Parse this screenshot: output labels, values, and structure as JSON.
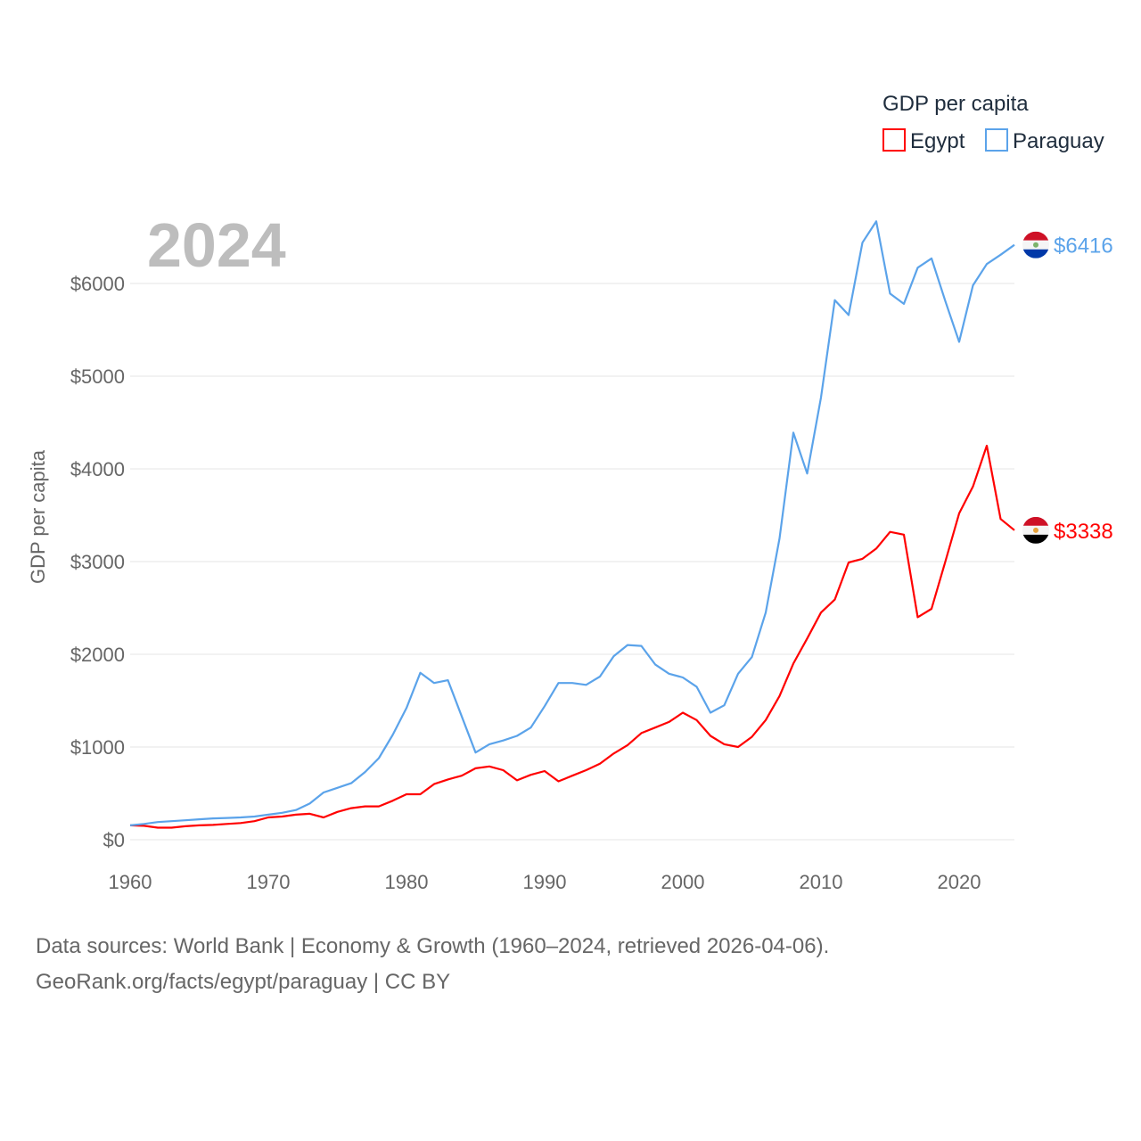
{
  "chart_data": {
    "type": "line",
    "title": "GDP per capita",
    "year_label": "2024",
    "ylabel": "GDP per capita",
    "xlabel": "",
    "xlim": [
      1960,
      2024
    ],
    "ylim": [
      0,
      6800
    ],
    "x_ticks": [
      1960,
      1970,
      1980,
      1990,
      2000,
      2010,
      2020
    ],
    "x_tick_labels": [
      "1960",
      "1970",
      "1980",
      "1990",
      "2000",
      "2010",
      "2020"
    ],
    "y_ticks": [
      0,
      1000,
      2000,
      3000,
      4000,
      5000,
      6000
    ],
    "y_tick_labels": [
      "$0",
      "$1000",
      "$2000",
      "$3000",
      "$4000",
      "$5000",
      "$6000"
    ],
    "grid": true,
    "legend_placement": "top-right",
    "x_start": 1960,
    "series": [
      {
        "name": "Egypt",
        "color": "#ff0000",
        "end_label": "$3338",
        "flag": "egypt-flag",
        "values": [
          155,
          150,
          130,
          130,
          145,
          155,
          160,
          170,
          180,
          200,
          240,
          250,
          270,
          280,
          240,
          300,
          340,
          360,
          360,
          420,
          490,
          490,
          600,
          650,
          690,
          770,
          790,
          750,
          640,
          700,
          740,
          630,
          690,
          750,
          820,
          930,
          1020,
          1150,
          1210,
          1270,
          1370,
          1290,
          1120,
          1030,
          1000,
          1110,
          1290,
          1550,
          1900,
          2170,
          2450,
          2590,
          2990,
          3030,
          3140,
          3320,
          3290,
          2400,
          2490,
          3000,
          3520,
          3810,
          4250,
          3460,
          3338
        ]
      },
      {
        "name": "Paraguay",
        "color": "#5ba3ea",
        "end_label": "$6416",
        "flag": "paraguay-flag",
        "values": [
          155,
          170,
          190,
          200,
          210,
          220,
          230,
          235,
          240,
          250,
          270,
          290,
          320,
          390,
          510,
          560,
          610,
          730,
          880,
          1130,
          1420,
          1800,
          1690,
          1720,
          1330,
          940,
          1030,
          1070,
          1120,
          1210,
          1440,
          1690,
          1690,
          1670,
          1760,
          1980,
          2100,
          2090,
          1890,
          1790,
          1750,
          1650,
          1370,
          1450,
          1790,
          1970,
          2450,
          3250,
          4390,
          3950,
          4770,
          5820,
          5660,
          6440,
          6670,
          5890,
          5780,
          6170,
          6270,
          5810,
          5370,
          5980,
          6210,
          6310,
          6416
        ]
      }
    ]
  },
  "footer": {
    "line1": "Data sources: World Bank | Economy & Growth (1960–2024, retrieved 2026-04-06).",
    "line2": "GeoRank.org/facts/egypt/paraguay | CC BY"
  }
}
